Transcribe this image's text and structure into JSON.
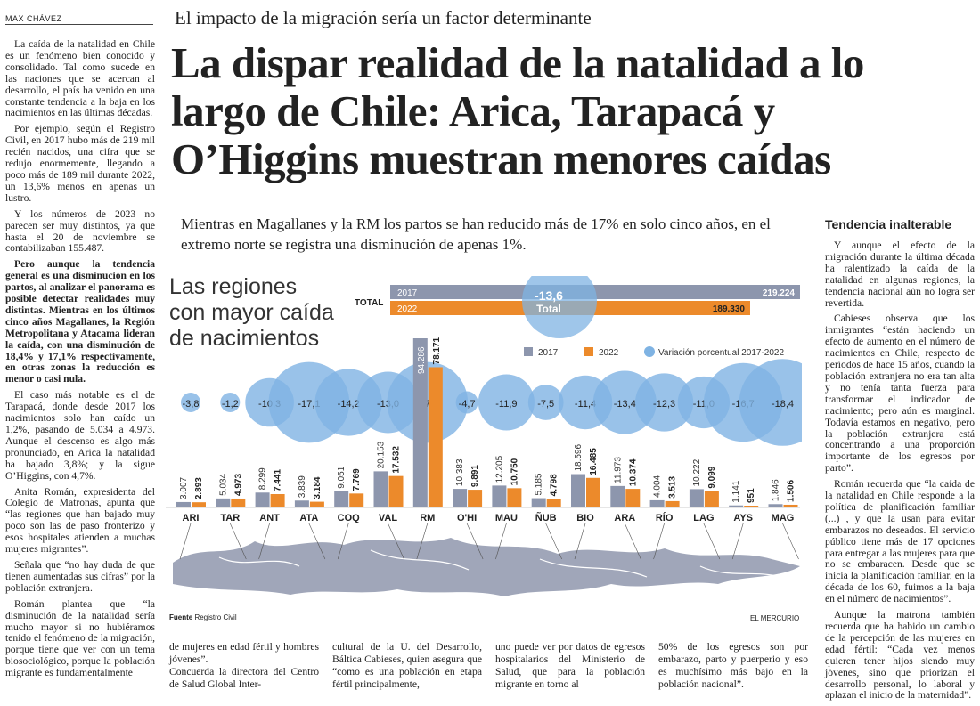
{
  "byline": "MAX CHÁVEZ",
  "kicker": "El impacto de la migración sería un factor determinante",
  "title": "La dispar realidad de la natalidad a lo largo de Chile: Arica, Tarapacá y O’Higgins muestran menores caídas",
  "bajada": "Mientras en Magallanes y la RM los partos se han reducido más de 17% en solo cinco años, en el extremo norte se registra una disminución de apenas 1%.",
  "left_col": [
    {
      "t": "La caída de la natalidad en Chile es un fenómeno bien conocido y consolidado. Tal como sucede en las naciones que se acercan al desarrollo, el país ha venido en una constante tendencia a la baja en los nacimientos en las últimas décadas.",
      "b": false
    },
    {
      "t": "Por ejemplo, según el Registro Civil, en 2017 hubo más de 219 mil recién nacidos, una cifra que se redujo enormemente, llegando a poco más de 189 mil durante 2022, un 13,6% menos en apenas un lustro.",
      "b": false
    },
    {
      "t": "Y los números de 2023 no parecen ser muy distintos, ya que hasta el 20 de noviembre se contabilizaban 155.487.",
      "b": false
    },
    {
      "t": "Pero aunque la tendencia general es una disminución en los partos, al analizar el panorama es posible detectar realidades muy distintas. Mientras en los últimos cinco años Magallanes, la Región Metropolitana y Atacama lideran la caída, con una disminución de 18,4% y 17,1% respectivamente, en otras zonas la reducción es menor o casi nula.",
      "b": true
    },
    {
      "t": "El caso más notable es el de Tarapacá, donde desde 2017 los nacimientos solo han caído un 1,2%, pasando de 5.034 a 4.973. Aunque el descenso es algo más pronunciado, en Arica la natalidad ha bajado 3,8%; y la sigue O’Higgins, con 4,7%.",
      "b": false
    },
    {
      "t": "Anita Román, expresidenta del Colegio de Matronas, apunta que “las regiones que han bajado muy poco son las de paso fronterizo y esos hospitales atienden a muchas mujeres migrantes”.",
      "b": false
    },
    {
      "t": "Señala que “no hay duda de que tienen aumentadas sus cifras” por la población extranjera.",
      "b": false
    },
    {
      "t": "Román plantea que “la disminución de la natalidad sería mucho mayor si no hubiéramos tenido el fenómeno de la migración, porque tiene que ver con un tema biosociológico, porque la población migrante es fundamentalmente",
      "b": false
    }
  ],
  "side_head": "Tendencia inalterable",
  "right_col": [
    {
      "t": "Y aunque el efecto de la migración durante la última década ha ralentizado la caída de la natalidad en algunas regiones, la tendencia nacional aún no logra ser revertida.",
      "b": false
    },
    {
      "t": "Cabieses observa que los inmigrantes “están haciendo un efecto de aumento en el número de nacimientos en Chile, respecto de períodos de hace 15 años, cuando la población extranjera no era tan alta y no tenía tanta fuerza para transformar el indicador de nacimiento; pero aún es marginal. Todavía estamos en negativo, pero la población extranjera está concentrando a una proporción importante de los egresos por parto”.",
      "b": false
    },
    {
      "t": "Román recuerda que “la caída de la natalidad en Chile responde a la política de planificación familiar (...) , y que la usan para evitar embarazos no deseados. El servicio público tiene más de 17 opciones para entregar a las mujeres para que no se embaracen. Desde que se inicia la planificación familiar, en la década de los 60, fuimos a la baja en el número de nacimientos”.",
      "b": false
    },
    {
      "t": "Aunque la matrona también recuerda que ha habido un cambio de la percepción de las mujeres en edad fértil: “Cada vez menos quieren tener hijos siendo muy jóvenes, sino que priorizan el desarrollo personal, lo laboral y aplazan el inicio de la maternidad”.",
      "b": false
    }
  ],
  "bottom_cols": [
    "de mujeres en edad fértil y hombres jóvenes”.\nConcuerda la directora del Centro de Salud Global Inter-",
    "cultural de la U. del Desarrollo, Báltica Cabieses, quien asegura que “como es una población en etapa fértil principalmente,",
    "uno puede ver por datos de egresos hospitalarios del Ministerio de Salud, que para la población migrante en torno al",
    "50% de los egresos son por embarazo, parto y puerperio y eso es muchísimo más bajo en la población nacional”."
  ],
  "chart_data": {
    "type": "bar",
    "title": "Las regiones con mayor caída de nacimientos",
    "legend": [
      "2017",
      "2022",
      "Variación porcentual 2017-2022"
    ],
    "categories": [
      "ARI",
      "TAR",
      "ANT",
      "ATA",
      "COQ",
      "VAL",
      "RM",
      "O'HI",
      "MAU",
      "ÑUB",
      "BIO",
      "ARA",
      "RÍO",
      "LAG",
      "AYS",
      "MAG"
    ],
    "series": [
      {
        "name": "2017",
        "values": [
          3007,
          5034,
          8299,
          3839,
          9051,
          20153,
          94286,
          10383,
          12205,
          5185,
          18596,
          11973,
          4004,
          10222,
          1141,
          1846
        ]
      },
      {
        "name": "2022",
        "values": [
          2893,
          4973,
          7441,
          3184,
          7769,
          17532,
          78171,
          9891,
          10750,
          4798,
          16485,
          10374,
          3513,
          9099,
          951,
          1506
        ]
      }
    ],
    "labels_2017": [
      "3.007",
      "5.034",
      "8.299",
      "3.839",
      "9.051",
      "20.153",
      "94.286",
      "10.383",
      "12.205",
      "5.185",
      "18.596",
      "11.973",
      "4.004",
      "10.222",
      "1.141",
      "1.846"
    ],
    "labels_2022": [
      "2.893",
      "4.973",
      "7.441",
      "3.184",
      "7.769",
      "17.532",
      "78.171",
      "9.891",
      "10.750",
      "4.798",
      "16.485",
      "10.374",
      "3.513",
      "9.099",
      "951",
      "1.506"
    ],
    "variation": [
      "-3,8",
      "-1,2",
      "-10,3",
      "-17,1",
      "-14,2",
      "-13,0",
      "-17,1",
      "-4,7",
      "-11,9",
      "-7,5",
      "-11,4",
      "-13,4",
      "-12,3",
      "-11,0",
      "-16,7",
      "-18,4"
    ],
    "variation_values": [
      -3.8,
      -1.2,
      -10.3,
      -17.1,
      -14.2,
      -13.0,
      -17.1,
      -4.7,
      -11.9,
      -7.5,
      -11.4,
      -13.4,
      -12.3,
      -11.0,
      -16.7,
      -18.4
    ],
    "total": {
      "label": "TOTAL",
      "year_a": "2017",
      "value_a": "219.224",
      "year_b": "2022",
      "value_b": "189.330",
      "variation": "-13,6",
      "variation_label": "Total"
    },
    "colors": {
      "y2017": "#8d96ad",
      "y2022": "#ec8a2b",
      "bubble": "#7fb3e3",
      "map": "#8f96ad"
    }
  },
  "source_label": "Fuente",
  "source": "Registro Civil",
  "credit": "EL MERCURIO"
}
